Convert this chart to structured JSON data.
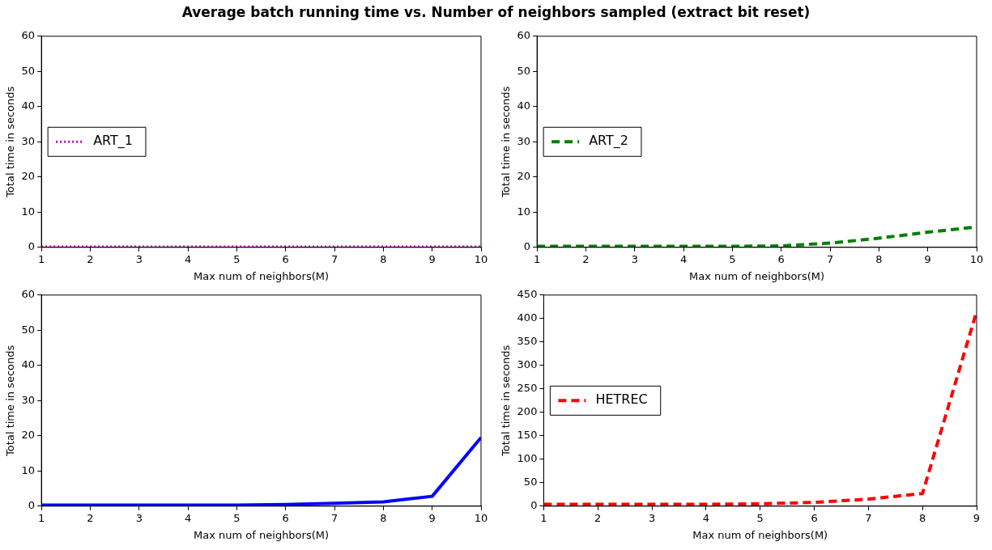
{
  "chart_data": [
    {
      "type": "line",
      "title": "Average batch running time vs. Number of neighbors sampled (extract bit reset)",
      "xlabel": "Max num of neighbors(M)",
      "ylabel": "Total time in seconds",
      "x": [
        1,
        2,
        3,
        4,
        5,
        6,
        7,
        8,
        9,
        10
      ],
      "xlim": [
        1,
        10
      ],
      "xticks": [
        1,
        2,
        3,
        4,
        5,
        6,
        7,
        8,
        9,
        10
      ],
      "ylim": [
        0,
        60
      ],
      "yticks": [
        0,
        10,
        20,
        30,
        40,
        50,
        60
      ],
      "grid": false,
      "legend": "center left",
      "series": [
        {
          "name": "ART_1",
          "color": "#bf00bf",
          "line_style": "dotted",
          "values": [
            0.2,
            0.2,
            0.2,
            0.2,
            0.2,
            0.2,
            0.2,
            0.2,
            0.2,
            0.2
          ]
        }
      ]
    },
    {
      "type": "line",
      "xlabel": "Max num of neighbors(M)",
      "ylabel": "Total time in seconds",
      "x": [
        1,
        2,
        3,
        4,
        5,
        6,
        7,
        8,
        9,
        10
      ],
      "xlim": [
        1,
        10
      ],
      "xticks": [
        1,
        2,
        3,
        4,
        5,
        6,
        7,
        8,
        9,
        10
      ],
      "ylim": [
        0,
        60
      ],
      "yticks": [
        0,
        10,
        20,
        30,
        40,
        50,
        60
      ],
      "grid": false,
      "legend": "center left",
      "series": [
        {
          "name": "ART_2",
          "color": "#007f00",
          "line_style": "dashed",
          "values": [
            0.3,
            0.3,
            0.3,
            0.3,
            0.3,
            0.4,
            1.2,
            2.6,
            4.3,
            5.8
          ]
        }
      ]
    },
    {
      "type": "line",
      "xlabel": "Max num of neighbors(M)",
      "ylabel": "Total time in seconds",
      "x": [
        1,
        2,
        3,
        4,
        5,
        6,
        7,
        8,
        9,
        10
      ],
      "xlim": [
        1,
        10
      ],
      "xticks": [
        1,
        2,
        3,
        4,
        5,
        6,
        7,
        8,
        9,
        10
      ],
      "ylim": [
        0,
        60
      ],
      "yticks": [
        0,
        10,
        20,
        30,
        40,
        50,
        60
      ],
      "grid": false,
      "legend": false,
      "series": [
        {
          "color": "#0000ff",
          "line_style": "solid",
          "values": [
            0.3,
            0.3,
            0.3,
            0.3,
            0.3,
            0.5,
            0.8,
            1.2,
            2.8,
            19.5
          ]
        }
      ]
    },
    {
      "type": "line",
      "xlabel": "Max num of neighbors(M)",
      "ylabel": "Total time in seconds",
      "x": [
        1,
        2,
        3,
        4,
        5,
        6,
        7,
        8,
        9
      ],
      "xlim": [
        1,
        9
      ],
      "xticks": [
        1,
        2,
        3,
        4,
        5,
        6,
        7,
        8,
        9
      ],
      "ylim": [
        0,
        450
      ],
      "yticks": [
        0,
        50,
        100,
        150,
        200,
        250,
        300,
        350,
        400,
        450
      ],
      "grid": false,
      "legend": "center left",
      "series": [
        {
          "name": "HETREC",
          "color": "#ff0000",
          "line_style": "dashed",
          "values": [
            4,
            4,
            4,
            4,
            5,
            8,
            15,
            27,
            415
          ]
        }
      ]
    }
  ]
}
